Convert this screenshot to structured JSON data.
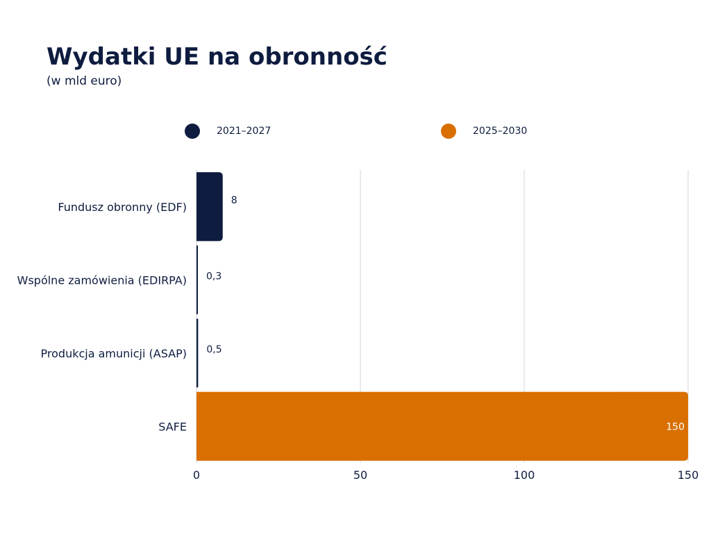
{
  "header": {
    "title": "Wydatki UE na obronność",
    "subtitle": "(w mld euro)"
  },
  "legend": [
    {
      "label": "2021–2027",
      "color": "#0e1c3f"
    },
    {
      "label": "2025–2030",
      "color": "#d96f00"
    }
  ],
  "chart_data": {
    "type": "bar",
    "orientation": "horizontal",
    "title": "Wydatki UE na obronność",
    "subtitle": "(w mld euro)",
    "categories": [
      "Fundusz obronny (EDF)",
      "Wspólne zamówienia (EDIRPA)",
      "Produkcja amunicji (ASAP)",
      "SAFE"
    ],
    "series": [
      {
        "name": "2021–2027",
        "color": "#0e1c3f",
        "values": [
          8,
          0.3,
          0.5,
          null
        ]
      },
      {
        "name": "2025–2030",
        "color": "#d96f00",
        "values": [
          null,
          null,
          null,
          150
        ]
      }
    ],
    "data_labels": [
      "8",
      "0,3",
      "0,5",
      "150"
    ],
    "xlim": [
      0,
      150
    ],
    "xticks": [
      0,
      50,
      100,
      150
    ],
    "xtick_labels": [
      "0",
      "50",
      "100",
      "150"
    ],
    "grid": true,
    "legend_position": "top"
  }
}
